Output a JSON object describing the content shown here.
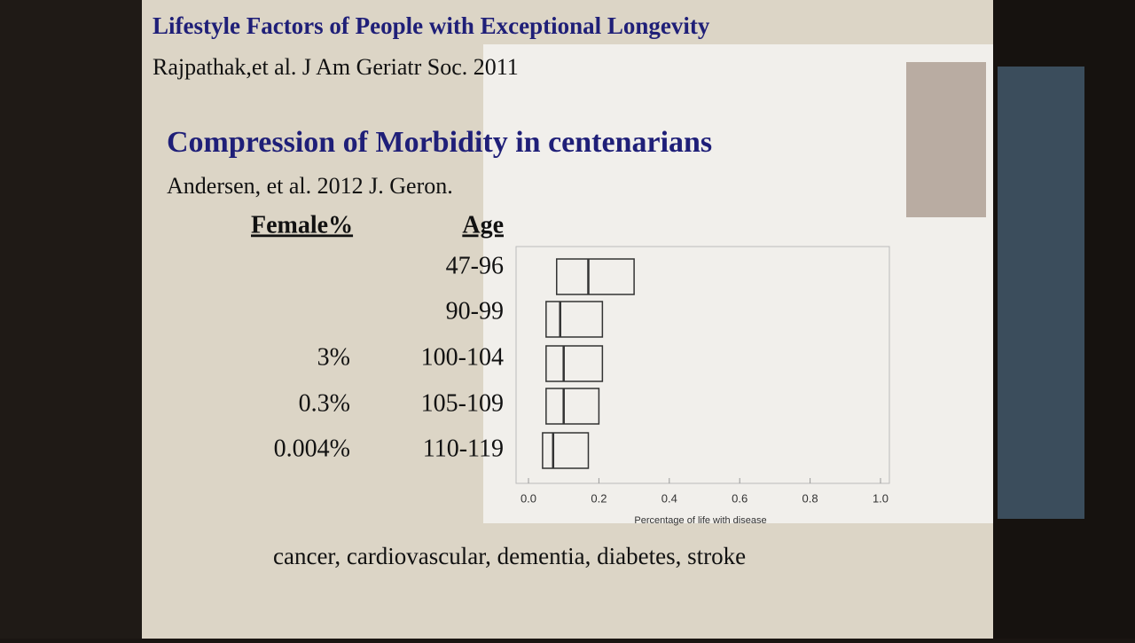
{
  "slide": {
    "title": "Lifestyle Factors of People with Exceptional Longevity",
    "citation1": "Rajpathak,et al. J Am Geriatr Soc. 2011",
    "heading": "Compression of Morbidity in centenarians",
    "citation2": "Andersen, et al. 2012 J. Geron.",
    "table": {
      "header": [
        "Female%",
        "Age"
      ],
      "rows": [
        [
          null,
          "47-96"
        ],
        [
          null,
          "90-99"
        ],
        [
          "3%",
          "100-104"
        ],
        [
          "0.3%",
          "105-109"
        ],
        [
          "0.004%",
          "110-119"
        ]
      ]
    },
    "footer": "cancer, cardiovascular, dementia, diabetes, stroke"
  },
  "chart_data": {
    "type": "box",
    "x_label": "Percentage of life with disease",
    "q1": [
      0.08,
      0.05,
      0.05,
      0.05,
      0.04
    ],
    "median": [
      0.17,
      0.09,
      0.1,
      0.1,
      0.07
    ],
    "q3": [
      0.3,
      0.21,
      0.21,
      0.2,
      0.17
    ],
    "xlim": [
      0,
      1
    ],
    "xticks": [
      {
        "value": 0,
        "label": "0.0"
      },
      {
        "value": 0.2,
        "label": "0.2"
      },
      {
        "value": 0.4,
        "label": "0.4"
      },
      {
        "value": 0.6,
        "label": "0.6"
      },
      {
        "value": 0.8,
        "label": "0.8"
      },
      {
        "value": 1,
        "label": "1.0"
      }
    ],
    "color": "#333333"
  }
}
